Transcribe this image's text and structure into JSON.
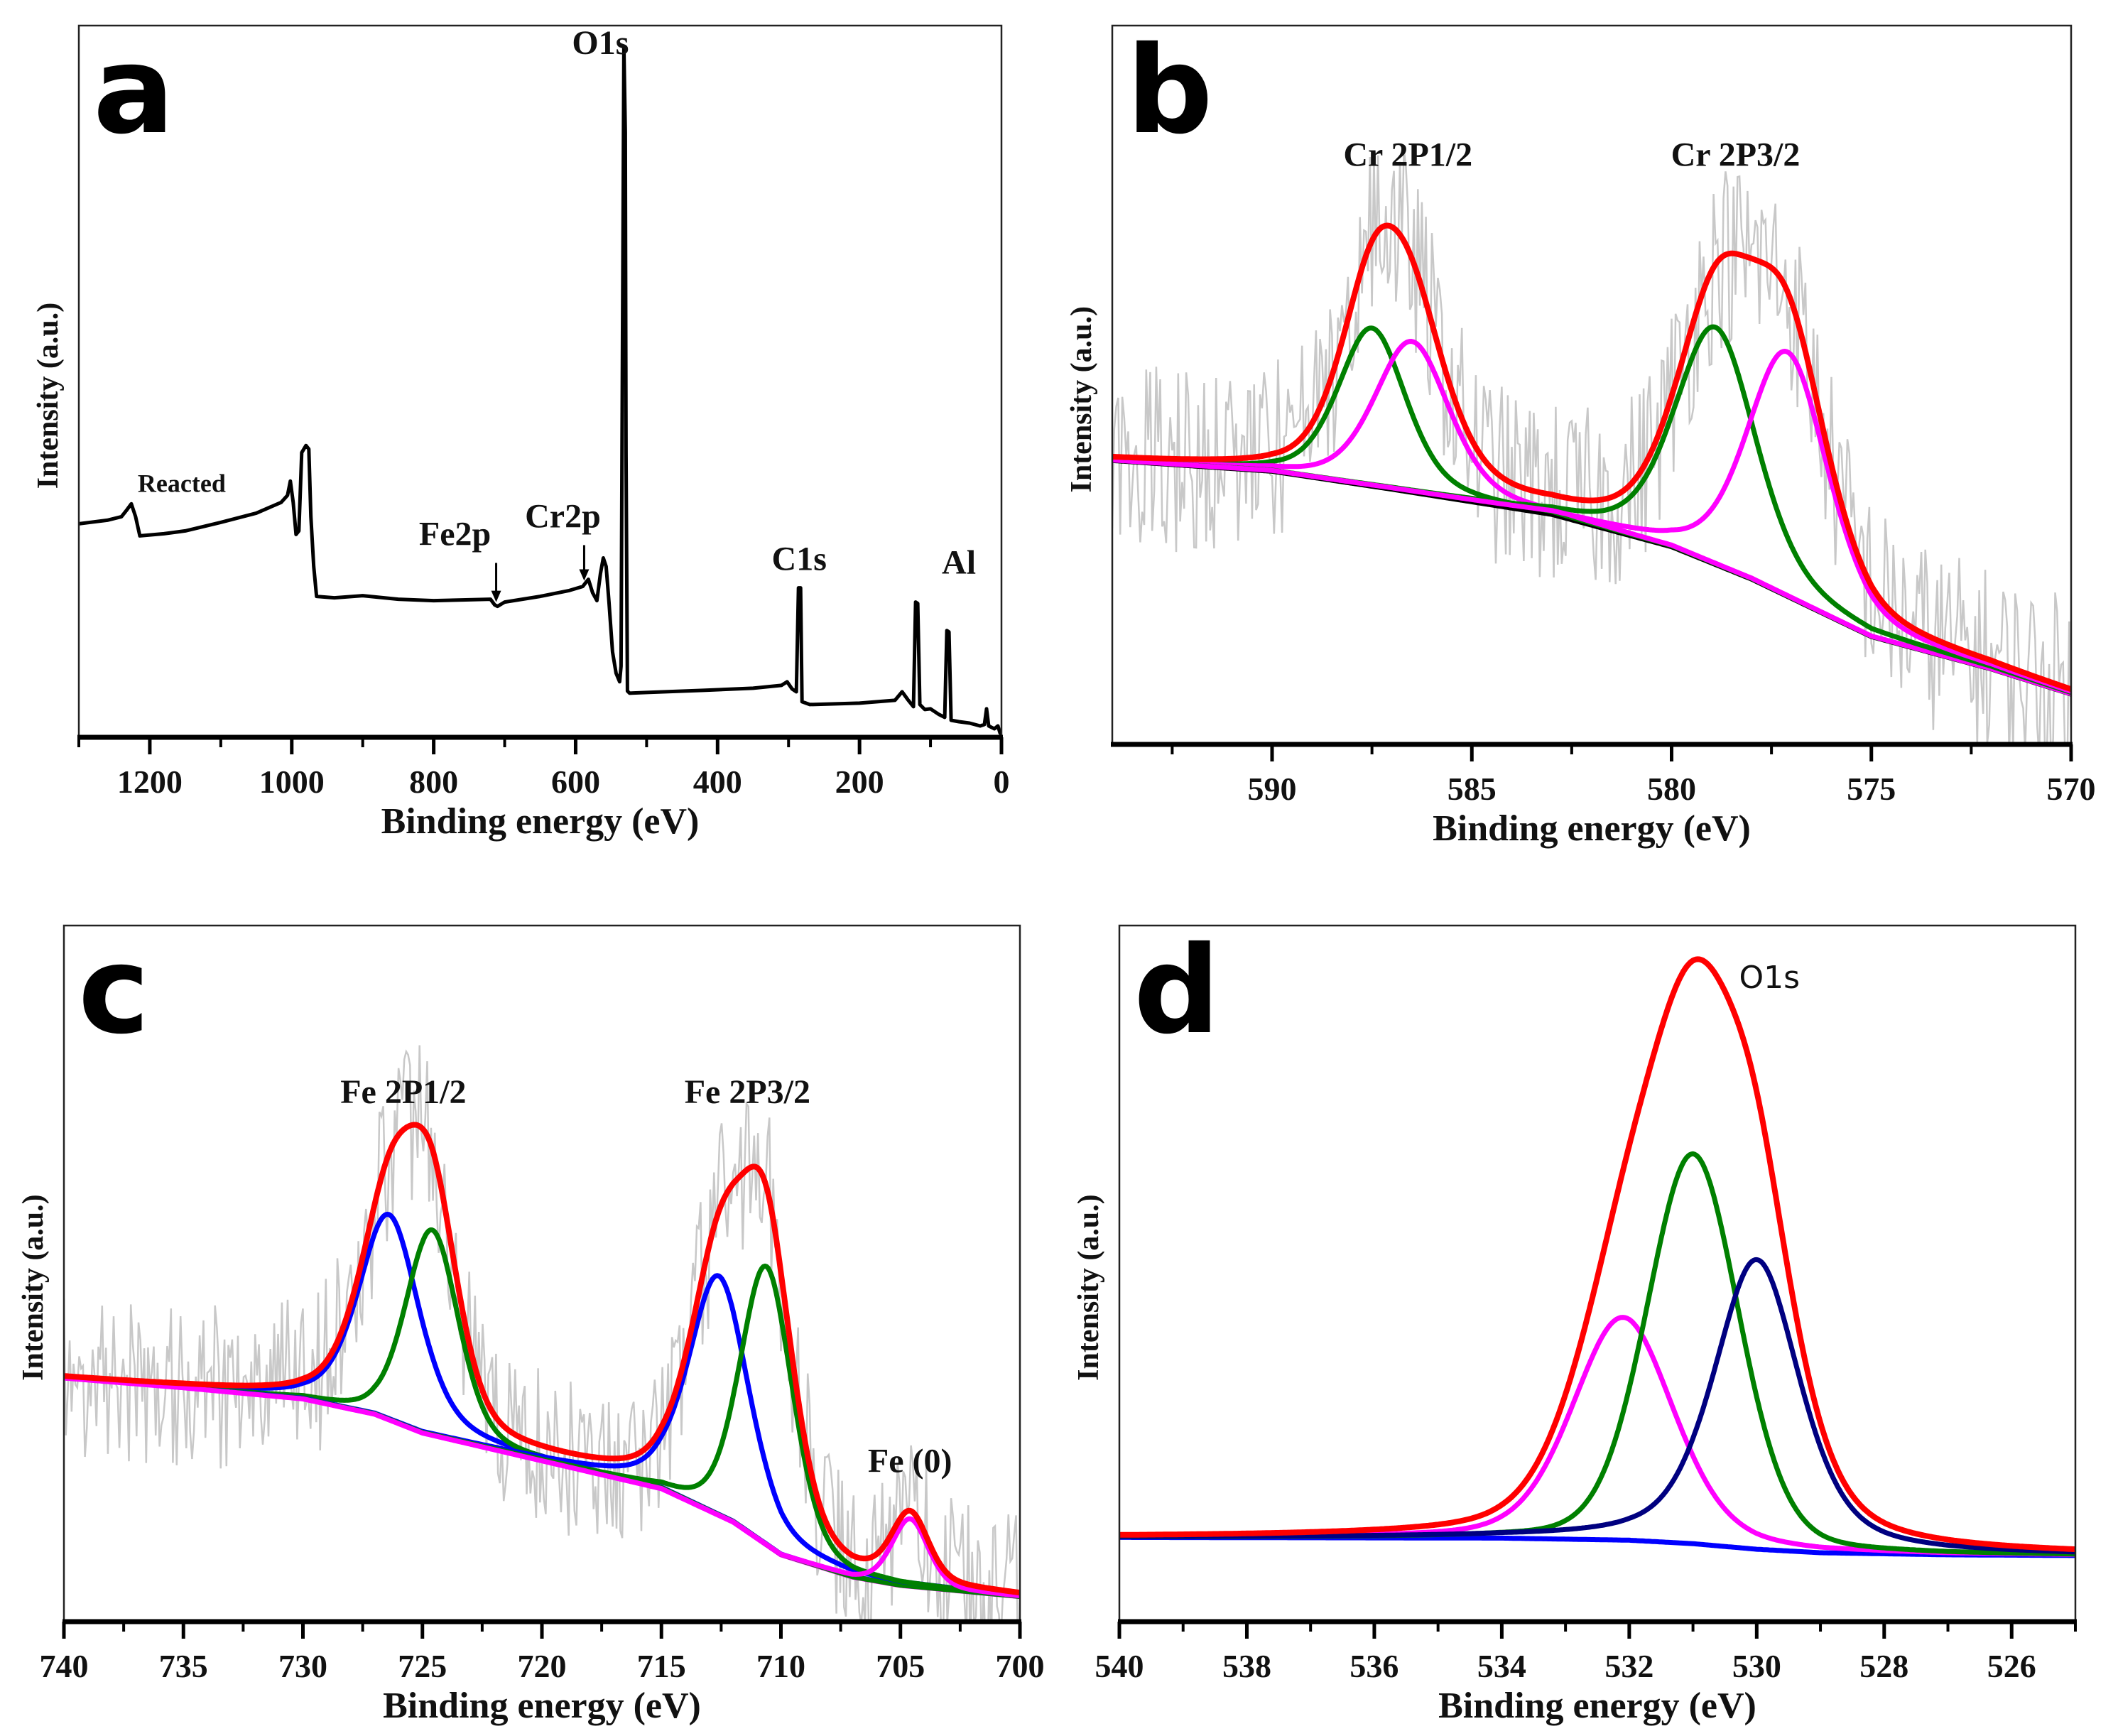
{
  "chart_data": [
    {
      "panel": "a",
      "type": "line",
      "title": "",
      "xlabel": "Binding energy (eV)",
      "ylabel": "Intensity (a.u.)",
      "xlim": [
        1300,
        0
      ],
      "ylim": [
        0,
        100
      ],
      "xticks": [
        1200,
        1000,
        800,
        600,
        400,
        200,
        0
      ],
      "xtick_labels": [
        "1200",
        "1000",
        "800",
        "600",
        "400",
        "200",
        "0"
      ],
      "minor_step": 100,
      "grid": false,
      "series": [
        {
          "name": "Reacted",
          "color": "#000000",
          "points": [
            [
              1300,
              30
            ],
            [
              1260,
              30.5
            ],
            [
              1240,
              31
            ],
            [
              1232,
              32
            ],
            [
              1226,
              32.8
            ],
            [
              1220,
              31
            ],
            [
              1214,
              28.3
            ],
            [
              1180,
              28.6
            ],
            [
              1150,
              29
            ],
            [
              1100,
              30.2
            ],
            [
              1050,
              31.5
            ],
            [
              1015,
              33
            ],
            [
              1006,
              34
            ],
            [
              1002,
              36
            ],
            [
              998,
              33
            ],
            [
              994,
              28.5
            ],
            [
              990,
              29
            ],
            [
              986,
              40
            ],
            [
              980,
              41
            ],
            [
              976,
              40.5
            ],
            [
              973,
              31
            ],
            [
              969,
              24
            ],
            [
              965,
              19.8
            ],
            [
              940,
              19.6
            ],
            [
              900,
              19.9
            ],
            [
              850,
              19.4
            ],
            [
              800,
              19.2
            ],
            [
              760,
              19.3
            ],
            [
              720,
              19.4
            ],
            [
              714,
              18.6
            ],
            [
              710,
              18.4
            ],
            [
              700,
              19
            ],
            [
              650,
              19.8
            ],
            [
              610,
              20.6
            ],
            [
              590,
              21.2
            ],
            [
              582,
              22.2
            ],
            [
              576,
              20.3
            ],
            [
              570,
              19.2
            ],
            [
              565,
              23
            ],
            [
              561,
              25.2
            ],
            [
              557,
              24
            ],
            [
              553,
              19
            ],
            [
              548,
              12
            ],
            [
              543,
              9
            ],
            [
              538,
              7.8
            ],
            [
              536,
              10
            ],
            [
              534,
              55
            ],
            [
              532,
              97
            ],
            [
              530,
              85
            ],
            [
              529,
              40
            ],
            [
              527,
              6.5
            ],
            [
              524,
              6.2
            ],
            [
              500,
              6.3
            ],
            [
              420,
              6.6
            ],
            [
              350,
              6.9
            ],
            [
              310,
              7.3
            ],
            [
              302,
              7.8
            ],
            [
              295,
              6.8
            ],
            [
              289,
              6.4
            ],
            [
              286,
              21
            ],
            [
              283,
              21
            ],
            [
              281,
              5
            ],
            [
              270,
              4.6
            ],
            [
              200,
              4.8
            ],
            [
              150,
              5.2
            ],
            [
              140,
              6.4
            ],
            [
              132,
              5.3
            ],
            [
              124,
              4.3
            ],
            [
              121,
              19
            ],
            [
              118,
              18.8
            ],
            [
              115,
              4.6
            ],
            [
              108,
              3.9
            ],
            [
              100,
              4
            ],
            [
              88,
              3.2
            ],
            [
              80,
              2.8
            ],
            [
              77,
              15
            ],
            [
              74,
              14.8
            ],
            [
              71,
              2.4
            ],
            [
              60,
              2.2
            ],
            [
              45,
              2
            ],
            [
              30,
              1.6
            ],
            [
              24,
              1.8
            ],
            [
              21,
              4
            ],
            [
              18,
              1.6
            ],
            [
              10,
              1.2
            ],
            [
              5,
              1.6
            ],
            [
              2,
              0.6
            ],
            [
              0,
              0.5
            ]
          ]
        }
      ],
      "annotations": [
        {
          "text": "O1s",
          "x": 565,
          "y": 96,
          "style": "annot"
        },
        {
          "text": "Reacted",
          "x": 1155,
          "y": 34.5,
          "style": "annot-small"
        },
        {
          "text": "Fe2p",
          "x": 770,
          "y": 27,
          "style": "annot"
        },
        {
          "text": "Cr2p",
          "x": 618,
          "y": 29.5,
          "style": "annot"
        },
        {
          "text": "C1s",
          "x": 285,
          "y": 23.5,
          "style": "annot"
        },
        {
          "text": "Al",
          "x": 60,
          "y": 23,
          "style": "annot"
        }
      ],
      "arrows": [
        {
          "x": 712,
          "from_y": 24.5,
          "to_y": 19
        },
        {
          "x": 588,
          "from_y": 27,
          "to_y": 22
        }
      ]
    },
    {
      "panel": "b",
      "type": "line",
      "title": "",
      "xlabel": "Binding energy (eV)",
      "ylabel": "Intensity (a.u.)",
      "xlim": [
        594,
        570
      ],
      "ylim": [
        0,
        100
      ],
      "xticks": [
        590,
        585,
        580,
        575,
        570
      ],
      "xtick_labels": [
        "590",
        "585",
        "580",
        "575",
        "570"
      ],
      "minor_step": 2.5,
      "grid": false,
      "raw": {
        "color": "#c8c8c8",
        "noise": 13,
        "step": 0.05
      },
      "background": {
        "color": "#000000",
        "points": [
          [
            594,
            39.5
          ],
          [
            590,
            38
          ],
          [
            587,
            35.5
          ],
          [
            583,
            32
          ],
          [
            580,
            27.5
          ],
          [
            578,
            23
          ],
          [
            575,
            15
          ],
          [
            572,
            10.5
          ],
          [
            570,
            7
          ]
        ]
      },
      "components": [
        {
          "name": "Cr 2p1/2 component A",
          "center": 587.5,
          "height": 22,
          "fwhm": 2.0,
          "eta": 0.4,
          "color": "#008000"
        },
        {
          "name": "Cr 2p1/2 component B",
          "center": 586.5,
          "height": 21,
          "fwhm": 2.2,
          "eta": 0.4,
          "color": "#ff00ff"
        },
        {
          "name": "Cr 2p3/2 component A",
          "center": 578.9,
          "height": 33,
          "fwhm": 2.4,
          "eta": 0.4,
          "color": "#008000"
        },
        {
          "name": "Cr 2p3/2 component B",
          "center": 577.1,
          "height": 34,
          "fwhm": 2.4,
          "eta": 0.4,
          "color": "#ff00ff"
        }
      ],
      "envelope_color": "#ff0000",
      "annotations": [
        {
          "text": "Cr 2P1/2",
          "x": 586.6,
          "y": 80.5,
          "style": "annot"
        },
        {
          "text": "Cr 2P3/2",
          "x": 578.4,
          "y": 80.5,
          "style": "annot"
        }
      ]
    },
    {
      "panel": "c",
      "type": "line",
      "title": "",
      "xlabel": "Binding energy (eV)",
      "ylabel": "Intensity (a.u.)",
      "xlim": [
        740,
        700
      ],
      "ylim": [
        0,
        100
      ],
      "xticks": [
        740,
        735,
        730,
        725,
        720,
        715,
        710,
        705,
        700
      ],
      "xtick_labels": [
        "740",
        "735",
        "730",
        "725",
        "720",
        "715",
        "710",
        "705",
        "700"
      ],
      "minor_step": 2.5,
      "grid": false,
      "raw": {
        "color": "#c8c8c8",
        "noise": 12,
        "step": 0.08
      },
      "background": {
        "color": "#ff00ff",
        "points": [
          [
            740,
            35
          ],
          [
            735,
            33.6
          ],
          [
            730,
            32
          ],
          [
            727,
            29.8
          ],
          [
            725,
            27.1
          ],
          [
            720,
            23.1
          ],
          [
            715,
            19.1
          ],
          [
            712,
            14.3
          ],
          [
            710,
            9.6
          ],
          [
            707,
            6.4
          ],
          [
            705,
            5.2
          ],
          [
            700,
            3.6
          ]
        ]
      },
      "components": [
        {
          "name": "Fe 2p1/2 component A",
          "center": 726.4,
          "height": 29.5,
          "fwhm": 3.0,
          "eta": 0.45,
          "color": "#0000ff"
        },
        {
          "name": "Fe 2p1/2 component B",
          "center": 724.6,
          "height": 29.5,
          "fwhm": 2.6,
          "eta": 0.3,
          "color": "#008000"
        },
        {
          "name": "Fe 2p3/2 component A",
          "center": 712.6,
          "height": 34.4,
          "fwhm": 3.0,
          "eta": 0.45,
          "color": "#0000ff"
        },
        {
          "name": "Fe 2p3/2 component B",
          "center": 710.6,
          "height": 40,
          "fwhm": 2.6,
          "eta": 0.3,
          "color": "#008000"
        },
        {
          "name": "Fe (0) component",
          "center": 704.6,
          "height": 9.7,
          "fwhm": 1.8,
          "eta": 0.3,
          "color": "#ff00ff"
        }
      ],
      "envelope_color": "#ff0000",
      "annotations": [
        {
          "text": "Fe 2P1/2",
          "x": 725.8,
          "y": 74.5,
          "style": "annot"
        },
        {
          "text": "Fe 2P3/2",
          "x": 711.4,
          "y": 74.5,
          "style": "annot"
        },
        {
          "text": "Fe (0)",
          "x": 704.6,
          "y": 21.5,
          "style": "annot"
        }
      ]
    },
    {
      "panel": "d",
      "type": "line",
      "title": "",
      "xlabel": "Binding energy (eV)",
      "ylabel": "Intensity (a.u.)",
      "xlim": [
        540,
        525
      ],
      "ylim": [
        0,
        100
      ],
      "xticks": [
        540,
        538,
        536,
        534,
        532,
        530,
        528,
        526
      ],
      "xtick_labels": [
        "540",
        "538",
        "536",
        "534",
        "532",
        "530",
        "528",
        "526"
      ],
      "minor_step": 1,
      "grid": false,
      "background": {
        "color": "#0000ff",
        "points": [
          [
            540,
            12.1
          ],
          [
            534,
            12
          ],
          [
            532,
            11.7
          ],
          [
            531,
            11.2
          ],
          [
            530,
            10.4
          ],
          [
            529,
            9.9
          ],
          [
            527,
            9.6
          ],
          [
            525,
            9.5
          ]
        ]
      },
      "components": [
        {
          "name": "O1s component A",
          "center": 532.1,
          "height": 32,
          "fwhm": 1.87,
          "eta": 0.3,
          "color": "#ff00ff"
        },
        {
          "name": "O1s component B",
          "center": 531.0,
          "height": 56,
          "fwhm": 1.7,
          "eta": 0.2,
          "color": "#008000"
        },
        {
          "name": "O1s component C",
          "center": 530.0,
          "height": 41.6,
          "fwhm": 1.6,
          "eta": 0.5,
          "color": "#000080"
        }
      ],
      "envelope_color": "#ff0000",
      "annotations": [
        {
          "text": "O1s",
          "x": 529.8,
          "y": 91,
          "style": "annot-sans"
        }
      ]
    }
  ]
}
